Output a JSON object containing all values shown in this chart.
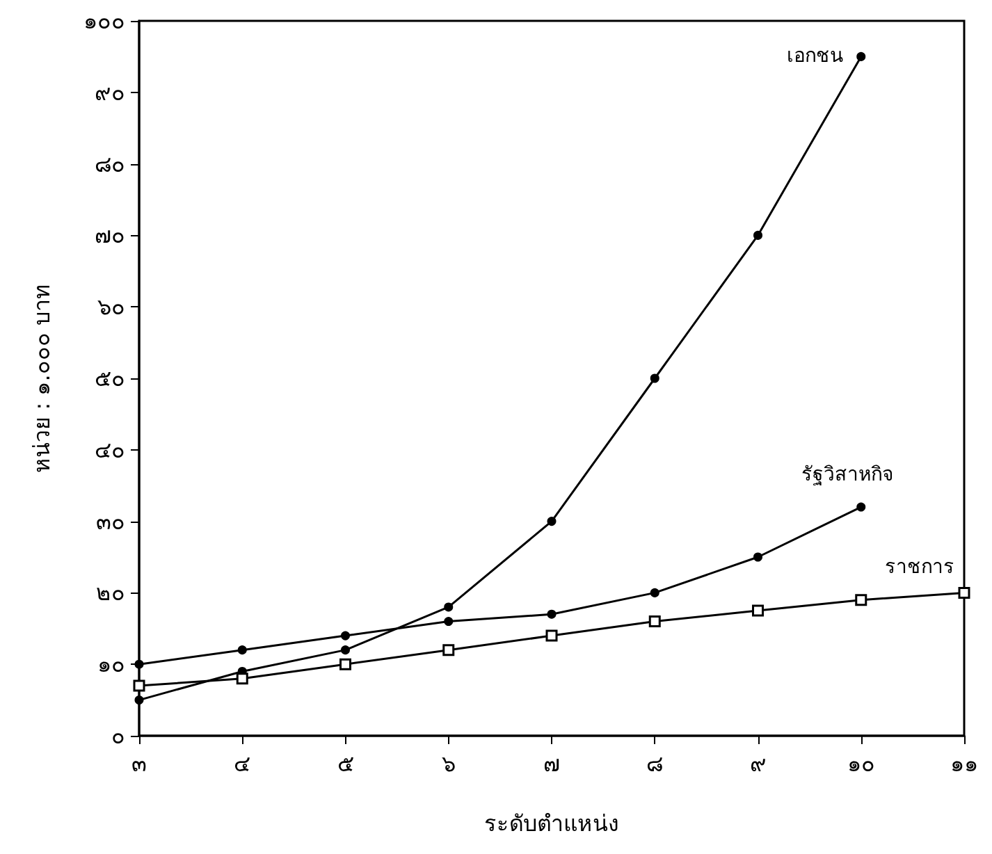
{
  "chart_data": {
    "type": "line",
    "xlabel": "ระดับตำแหน่ง",
    "ylabel": "หน่วย : ๑.๐๐๐ บาท",
    "xlim": [
      3,
      11
    ],
    "ylim": [
      0,
      100
    ],
    "xticks": [
      {
        "value": 3,
        "label": "๓"
      },
      {
        "value": 4,
        "label": "๔"
      },
      {
        "value": 5,
        "label": "๕"
      },
      {
        "value": 6,
        "label": "๖"
      },
      {
        "value": 7,
        "label": "๗"
      },
      {
        "value": 8,
        "label": "๘"
      },
      {
        "value": 9,
        "label": "๙"
      },
      {
        "value": 10,
        "label": "๑๐"
      },
      {
        "value": 11,
        "label": "๑๑"
      }
    ],
    "yticks": [
      {
        "value": 0,
        "label": "๐"
      },
      {
        "value": 10,
        "label": "๑๐"
      },
      {
        "value": 20,
        "label": "๒๐"
      },
      {
        "value": 30,
        "label": "๓๐"
      },
      {
        "value": 40,
        "label": "๔๐"
      },
      {
        "value": 50,
        "label": "๕๐"
      },
      {
        "value": 60,
        "label": "๖๐"
      },
      {
        "value": 70,
        "label": "๗๐"
      },
      {
        "value": 80,
        "label": "๘๐"
      },
      {
        "value": 90,
        "label": "๙๐"
      },
      {
        "value": 100,
        "label": "๑๐๐"
      }
    ],
    "grid": false,
    "legend": false,
    "line_style": "solid",
    "series": [
      {
        "name": "เอกชน",
        "color": "#000000",
        "marker": "circle",
        "x": [
          3,
          4,
          5,
          6,
          7,
          8,
          9,
          10
        ],
        "values": [
          5,
          9,
          12,
          18,
          30,
          50,
          70,
          95
        ]
      },
      {
        "name": "รัฐวิสาหกิจ",
        "color": "#000000",
        "marker": "circle",
        "x": [
          3,
          4,
          5,
          6,
          7,
          8,
          9,
          10
        ],
        "values": [
          10,
          12,
          14,
          16,
          17,
          20,
          25,
          32
        ]
      },
      {
        "name": "ราชการ",
        "color": "#000000",
        "marker": "square",
        "x": [
          3,
          4,
          5,
          6,
          7,
          8,
          9,
          10,
          11
        ],
        "values": [
          7,
          8,
          10,
          12,
          14,
          16,
          17.5,
          19,
          20
        ]
      }
    ]
  }
}
